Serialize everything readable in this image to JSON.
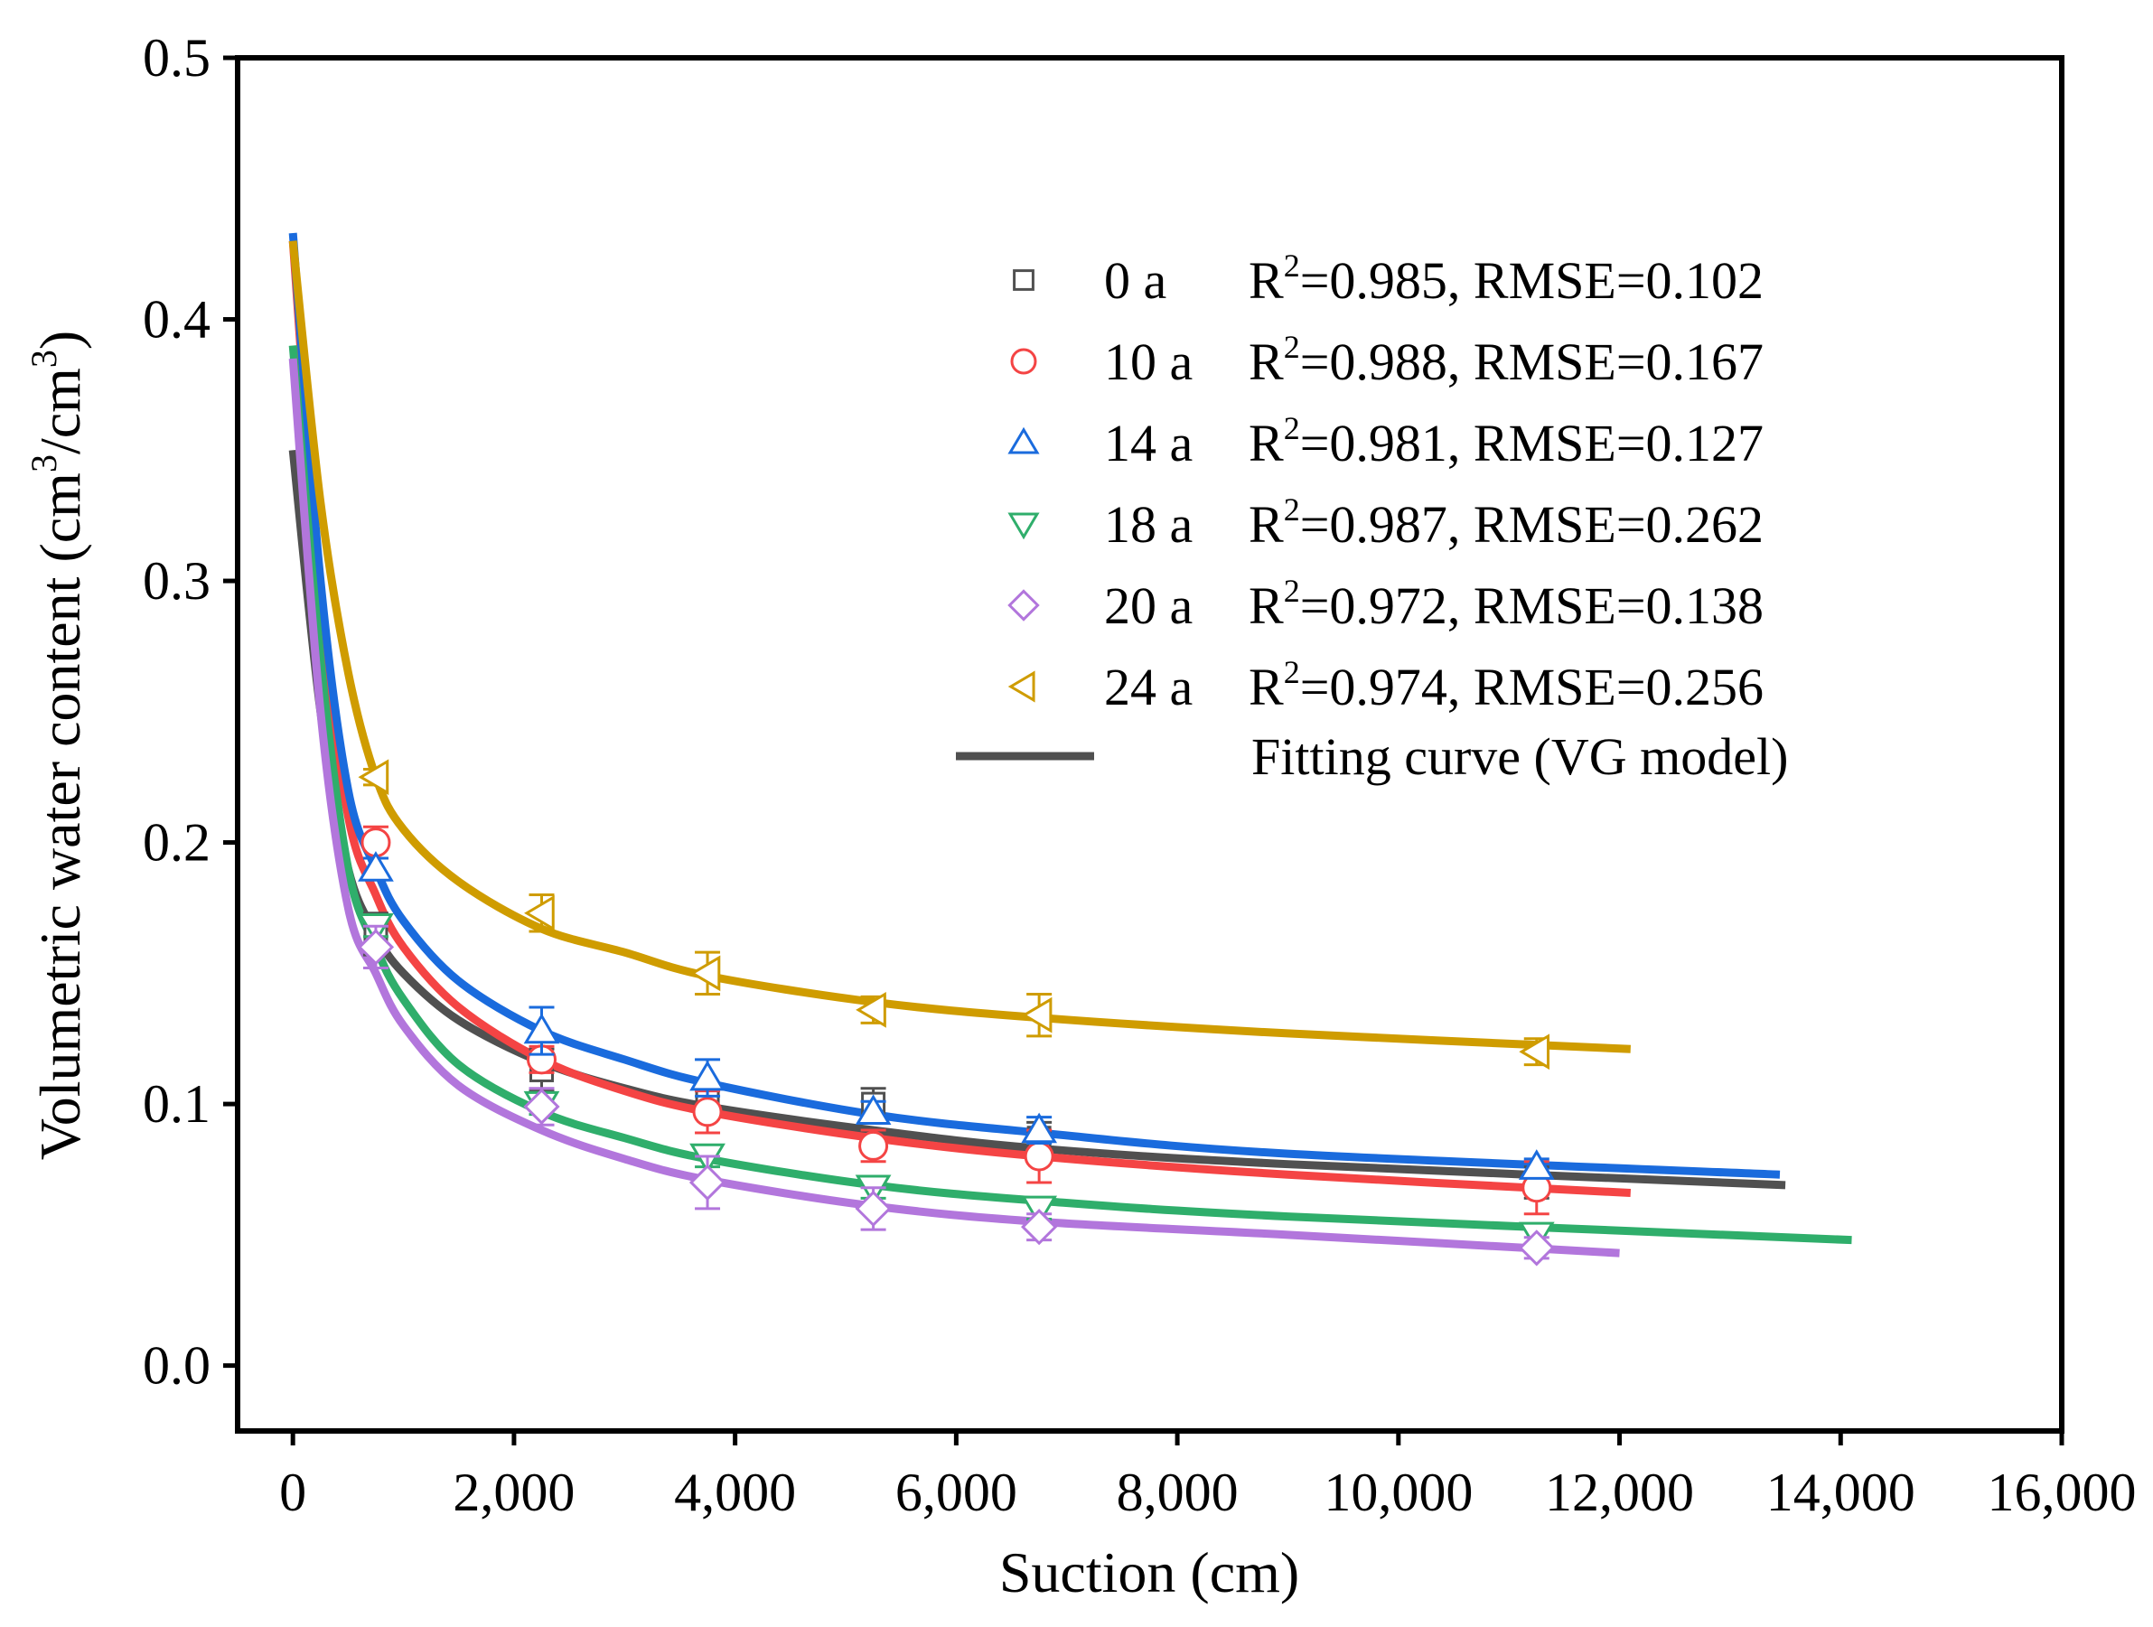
{
  "chart_data": {
    "type": "scatter",
    "title": "",
    "xlabel": "Suction (cm)",
    "ylabel": "Volumetric water content (cm3/cm3)",
    "ylabel_parts": {
      "main": "Volumetric water content (cm",
      "sup1": "3",
      "mid": "/cm",
      "sup2": "3",
      "end": ")"
    },
    "xlim": [
      -500,
      16000
    ],
    "ylim": [
      -0.025,
      0.5
    ],
    "xticks": [
      0,
      2000,
      4000,
      6000,
      8000,
      10000,
      12000,
      14000,
      16000
    ],
    "xtick_labels": [
      "0",
      "2,000",
      "4,000",
      "6,000",
      "8,000",
      "10,000",
      "12,000",
      "14,000",
      "16,000"
    ],
    "yticks": [
      0.0,
      0.1,
      0.2,
      0.3,
      0.4,
      0.5
    ],
    "ytick_labels": [
      "0.0",
      "0.1",
      "0.2",
      "0.3",
      "0.4",
      "0.5"
    ],
    "grid": false,
    "legend_position": "top-right",
    "fit_legend_label": "Fitting curve (VG model)",
    "fit_legend_color": "#505050",
    "x": [
      750,
      2250,
      3750,
      5250,
      6750,
      11250
    ],
    "series": [
      {
        "name": "0 a",
        "marker": "square",
        "color": "#505050",
        "r2": "R2=0.985,",
        "r2_value": "0.985",
        "rmse": "RMSE=0.102",
        "values": [
          0.165,
          0.113,
          0.101,
          0.1,
          0.087,
          0.07
        ],
        "errors": [
          0.008,
          0.008,
          0.006,
          0.006,
          0.006,
          0.006
        ],
        "fit_x": [
          0,
          250,
          500,
          750,
          1000,
          1500,
          2250,
          3000,
          3750,
          5250,
          6750,
          9000,
          13500
        ],
        "fit_y": [
          0.35,
          0.25,
          0.19,
          0.165,
          0.15,
          0.132,
          0.116,
          0.106,
          0.099,
          0.09,
          0.083,
          0.077,
          0.069
        ]
      },
      {
        "name": "10 a",
        "marker": "circle",
        "color": "#F44444",
        "r2": "R2=0.988,",
        "r2_value": "0.988",
        "rmse": "RMSE=0.167",
        "values": [
          0.2,
          0.117,
          0.097,
          0.084,
          0.08,
          0.068
        ],
        "errors": [
          0.006,
          0.005,
          0.008,
          0.006,
          0.01,
          0.01
        ],
        "fit_x": [
          0,
          250,
          500,
          750,
          1000,
          1500,
          2250,
          3000,
          3750,
          5250,
          6750,
          9000,
          12100
        ],
        "fit_y": [
          0.43,
          0.29,
          0.21,
          0.18,
          0.16,
          0.137,
          0.117,
          0.105,
          0.097,
          0.087,
          0.08,
          0.073,
          0.066
        ]
      },
      {
        "name": "14 a",
        "marker": "triangle-up",
        "color": "#1A6BDD",
        "r2": "R2=0.981,",
        "r2_value": "0.981",
        "rmse": "RMSE=0.127",
        "values": [
          0.19,
          0.128,
          0.11,
          0.097,
          0.09,
          0.076
        ],
        "errors": [
          0.004,
          0.009,
          0.007,
          0.004,
          0.005,
          0.003
        ],
        "fit_x": [
          0,
          250,
          500,
          750,
          1000,
          1500,
          2250,
          3000,
          3750,
          5250,
          6750,
          9000,
          13450
        ],
        "fit_y": [
          0.433,
          0.3,
          0.22,
          0.19,
          0.17,
          0.147,
          0.128,
          0.117,
          0.108,
          0.096,
          0.089,
          0.081,
          0.073
        ]
      },
      {
        "name": "18 a",
        "marker": "triangle-down",
        "color": "#2FAE6B",
        "r2": "R2=0.987,",
        "r2_value": "0.987",
        "rmse": "RMSE=0.262",
        "values": [
          0.168,
          0.1,
          0.08,
          0.068,
          0.06,
          0.05
        ],
        "errors": [
          0.004,
          0.004,
          0.004,
          0.004,
          0.004,
          0.004
        ],
        "fit_x": [
          0,
          250,
          500,
          750,
          1000,
          1500,
          2250,
          3000,
          3750,
          5250,
          6750,
          9000,
          14100
        ],
        "fit_y": [
          0.39,
          0.27,
          0.19,
          0.16,
          0.14,
          0.115,
          0.097,
          0.087,
          0.079,
          0.069,
          0.063,
          0.057,
          0.048
        ]
      },
      {
        "name": "20 a",
        "marker": "diamond",
        "color": "#B276DC",
        "r2": "R2=0.972,",
        "r2_value": "0.972",
        "rmse": "RMSE=0.138",
        "values": [
          0.16,
          0.099,
          0.07,
          0.06,
          0.053,
          0.045
        ],
        "errors": [
          0.008,
          0.007,
          0.01,
          0.008,
          0.005,
          0.004
        ],
        "fit_x": [
          0,
          250,
          500,
          750,
          1000,
          1500,
          2250,
          3000,
          3750,
          5250,
          6750,
          9000,
          12000
        ],
        "fit_y": [
          0.385,
          0.25,
          0.175,
          0.15,
          0.13,
          0.107,
          0.09,
          0.079,
          0.071,
          0.061,
          0.055,
          0.05,
          0.043
        ]
      },
      {
        "name": "24 a",
        "marker": "triangle-left",
        "color": "#CF9C00",
        "r2": "R2=0.974,",
        "r2_value": "0.974",
        "rmse": "RMSE=0.256",
        "values": [
          0.225,
          0.173,
          0.15,
          0.136,
          0.134,
          0.12
        ],
        "errors": [
          0.003,
          0.007,
          0.008,
          0.005,
          0.008,
          0.005
        ],
        "fit_x": [
          0,
          250,
          500,
          750,
          1000,
          1500,
          2250,
          3000,
          3750,
          5250,
          6750,
          9000,
          12100
        ],
        "fit_y": [
          0.43,
          0.33,
          0.265,
          0.225,
          0.205,
          0.185,
          0.167,
          0.158,
          0.149,
          0.139,
          0.133,
          0.127,
          0.121
        ]
      }
    ]
  }
}
